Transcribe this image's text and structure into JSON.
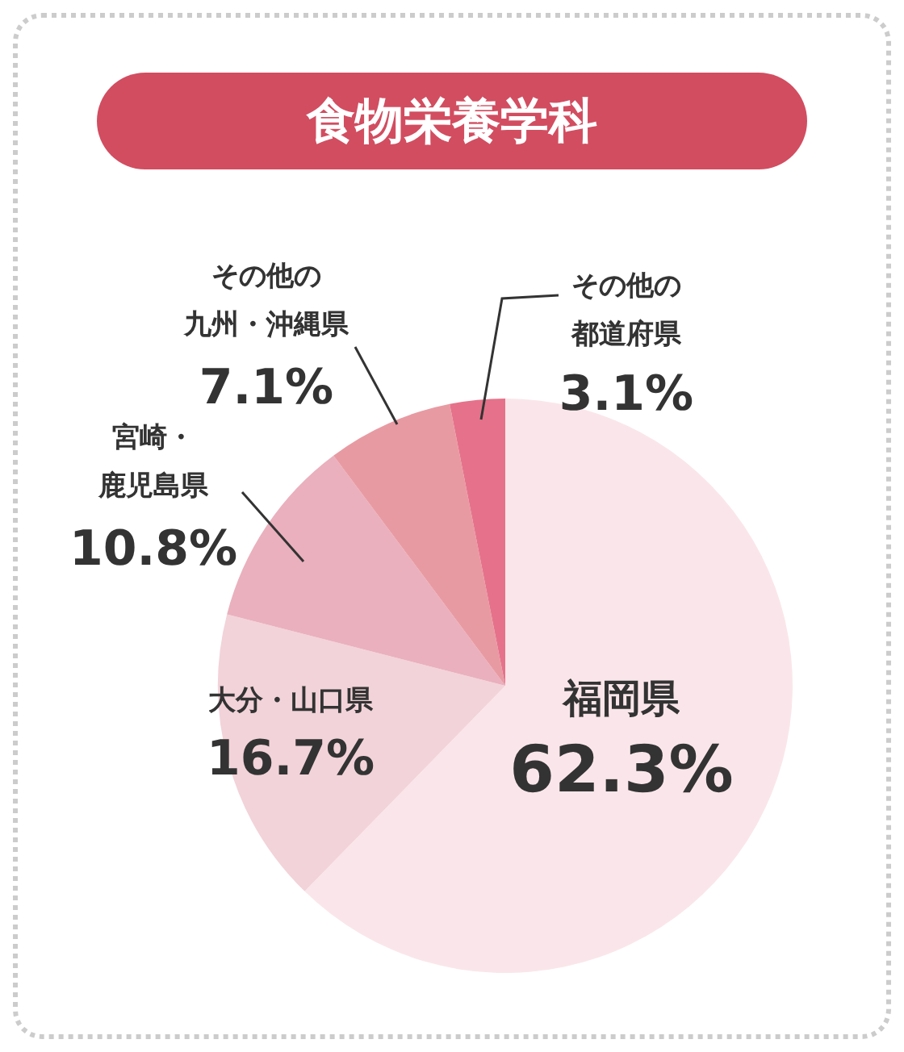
{
  "chart_data": {
    "type": "pie",
    "title": "食物栄養学科",
    "categories": [
      "福岡県",
      "大分・山口県",
      "宮崎・鹿児島県",
      "その他の九州・沖縄県",
      "その他の都道府県"
    ],
    "values": [
      62.3,
      16.7,
      10.8,
      7.1,
      3.1
    ],
    "value_labels": [
      "62.3%",
      "16.7%",
      "10.8%",
      "7.1%",
      "3.1%"
    ],
    "colors": [
      "#fae6ea",
      "#f2d3d9",
      "#eab0bd",
      "#e89aa2",
      "#e5728a"
    ],
    "legend": false
  }
}
